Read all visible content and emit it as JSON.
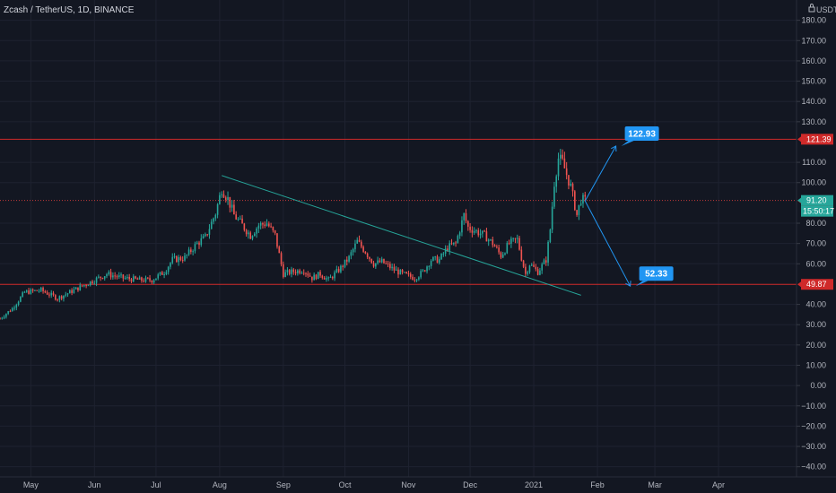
{
  "chart_data": {
    "type": "candlestick",
    "title": "Zcash / TetherUS, 1D, BINANCE",
    "currency": "USDT",
    "currency_icon": "lock-icon",
    "ylim": [
      -45,
      190
    ],
    "y_ticks": [
      180,
      170,
      160,
      150,
      140,
      130,
      110,
      100,
      80,
      70,
      60,
      40,
      30,
      20,
      10,
      0,
      -10,
      -20,
      -30,
      -40
    ],
    "y_tick_labels": [
      "180.00",
      "170.00",
      "160.00",
      "150.00",
      "140.00",
      "130.00",
      "110.00",
      "100.00",
      "80.00",
      "70.00",
      "60.00",
      "40.00",
      "30.00",
      "20.00",
      "10.00",
      "0.00",
      "−10.00",
      "−20.00",
      "−30.00",
      "−40.00"
    ],
    "x_labels": [
      {
        "label": "May",
        "day": 15
      },
      {
        "label": "Jun",
        "day": 46
      },
      {
        "label": "Jul",
        "day": 76
      },
      {
        "label": "Aug",
        "day": 107
      },
      {
        "label": "Sep",
        "day": 138
      },
      {
        "label": "Oct",
        "day": 168
      },
      {
        "label": "Nov",
        "day": 199
      },
      {
        "label": "Dec",
        "day": 229
      },
      {
        "label": "2021",
        "day": 260
      },
      {
        "label": "Feb",
        "day": 291
      },
      {
        "label": "Mar",
        "day": 319
      },
      {
        "label": "Apr",
        "day": 350
      }
    ],
    "x_domain_days": [
      0,
      388
    ],
    "anchors": [
      [
        0,
        33
      ],
      [
        6,
        38
      ],
      [
        12,
        46
      ],
      [
        20,
        47
      ],
      [
        28,
        43
      ],
      [
        36,
        47
      ],
      [
        44,
        51
      ],
      [
        52,
        55
      ],
      [
        60,
        53
      ],
      [
        68,
        52
      ],
      [
        74,
        52
      ],
      [
        80,
        56
      ],
      [
        84,
        62
      ],
      [
        90,
        63
      ],
      [
        96,
        70
      ],
      [
        100,
        73
      ],
      [
        105,
        85
      ],
      [
        108,
        97
      ],
      [
        111,
        92
      ],
      [
        114,
        84
      ],
      [
        118,
        79
      ],
      [
        122,
        74
      ],
      [
        126,
        79
      ],
      [
        130,
        80
      ],
      [
        134,
        74
      ],
      [
        138,
        55
      ],
      [
        142,
        56
      ],
      [
        148,
        57
      ],
      [
        152,
        53
      ],
      [
        156,
        55
      ],
      [
        160,
        52
      ],
      [
        166,
        58
      ],
      [
        170,
        63
      ],
      [
        174,
        71
      ],
      [
        178,
        66
      ],
      [
        182,
        60
      ],
      [
        186,
        61
      ],
      [
        192,
        57
      ],
      [
        196,
        55
      ],
      [
        202,
        53
      ],
      [
        206,
        56
      ],
      [
        210,
        62
      ],
      [
        214,
        62
      ],
      [
        218,
        68
      ],
      [
        222,
        70
      ],
      [
        226,
        84
      ],
      [
        228,
        78
      ],
      [
        232,
        76
      ],
      [
        236,
        74
      ],
      [
        240,
        70
      ],
      [
        244,
        64
      ],
      [
        248,
        70
      ],
      [
        252,
        72
      ],
      [
        254,
        63
      ],
      [
        256,
        55
      ],
      [
        258,
        60
      ],
      [
        262,
        56
      ],
      [
        266,
        62
      ],
      [
        268,
        77
      ],
      [
        270,
        100
      ],
      [
        272,
        112
      ],
      [
        274,
        110
      ],
      [
        278,
        98
      ],
      [
        281,
        84
      ],
      [
        283,
        92
      ],
      [
        285,
        91
      ]
    ],
    "candle_spacing_days": 1,
    "horizontal_levels": [
      {
        "value": 121.39,
        "label": "121.39",
        "color": "#cf2a2a"
      },
      {
        "value": 49.87,
        "label": "49.87",
        "color": "#cf2a2a"
      },
      {
        "value": 91.0,
        "label": "91.00",
        "color": "#8f1515"
      }
    ],
    "last_price": {
      "value": 91.2,
      "label": "91.20",
      "countdown": "15:50:17",
      "color": "#26a69a"
    },
    "trendline": {
      "from": {
        "day": 108,
        "value": 103.5
      },
      "to": {
        "day": 283,
        "value": 44.5
      },
      "color": "#26a69a"
    },
    "projections": [
      {
        "from": {
          "day": 285,
          "value": 91
        },
        "to": {
          "day": 300,
          "value": 118
        },
        "label": "122.93",
        "color": "#2196f3"
      },
      {
        "from": {
          "day": 285,
          "value": 91
        },
        "to": {
          "day": 307,
          "value": 49
        },
        "label": "52.33",
        "color": "#2196f3"
      }
    ],
    "colors": {
      "up": "#26a69a",
      "down": "#ef5350",
      "background": "#131722",
      "grid": "#1e2230",
      "axis_text": "#b2b5be"
    }
  }
}
